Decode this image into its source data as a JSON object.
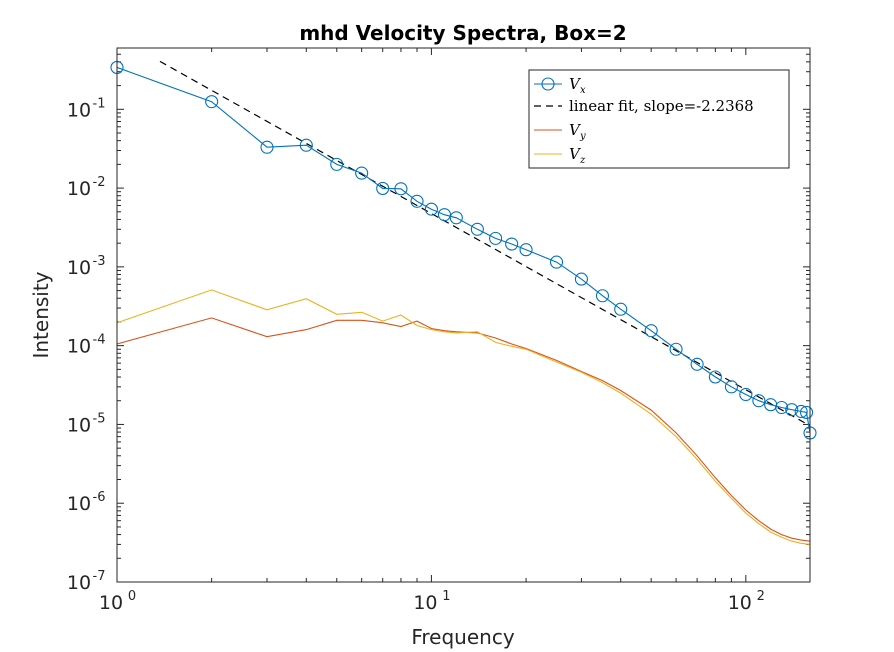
{
  "chart_data": {
    "type": "line",
    "title": "mhd Velocity Spectra, Box=2",
    "xlabel": "Frequency",
    "ylabel": "Intensity",
    "xscale": "log",
    "yscale": "log",
    "xlim": [
      1,
      160
    ],
    "ylim": [
      1e-07,
      0.6
    ],
    "xticks": [
      {
        "base": "10",
        "exp": "0",
        "value": 1
      },
      {
        "base": "10",
        "exp": "1",
        "value": 10
      },
      {
        "base": "10",
        "exp": "2",
        "value": 100
      }
    ],
    "yticks": [
      {
        "base": "10",
        "exp": "-7",
        "value": 1e-07
      },
      {
        "base": "10",
        "exp": "-6",
        "value": 1e-06
      },
      {
        "base": "10",
        "exp": "-5",
        "value": 1e-05
      },
      {
        "base": "10",
        "exp": "-4",
        "value": 0.0001
      },
      {
        "base": "10",
        "exp": "-3",
        "value": 0.001
      },
      {
        "base": "10",
        "exp": "-2",
        "value": 0.01
      },
      {
        "base": "10",
        "exp": "-1",
        "value": 0.1
      }
    ],
    "grid": false,
    "legend_position": "top-right",
    "series": [
      {
        "name": "V_x",
        "name_main": "V",
        "name_sub": "x",
        "color": "#0072BD",
        "style": "line-circle",
        "x": [
          1,
          2,
          3,
          4,
          5,
          6,
          7,
          8,
          9,
          10,
          11,
          12,
          14,
          16,
          18,
          20,
          25,
          30,
          35,
          40,
          50,
          60,
          70,
          80,
          90,
          100,
          110,
          120,
          130,
          140,
          150,
          156,
          160
        ],
        "y": [
          0.34,
          0.125,
          0.033,
          0.035,
          0.02,
          0.0155,
          0.0099,
          0.0098,
          0.0068,
          0.0054,
          0.0046,
          0.0042,
          0.003,
          0.0023,
          0.00195,
          0.00165,
          0.00115,
          0.0007,
          0.00043,
          0.00029,
          0.000155,
          9e-05,
          5.8e-05,
          4e-05,
          3e-05,
          2.4e-05,
          2e-05,
          1.78e-05,
          1.64e-05,
          1.54e-05,
          1.46e-05,
          1.42e-05,
          7.8e-06
        ]
      },
      {
        "name": "linear fit, slope=-2.2368",
        "color": "#000000",
        "style": "dashed",
        "slope": -2.2368,
        "intercept_at_x1": 0.82,
        "x_range": [
          1.37,
          160
        ]
      },
      {
        "name": "V_y",
        "name_main": "V",
        "name_sub": "y",
        "color": "#D95319",
        "style": "line",
        "x": [
          1,
          2,
          3,
          4,
          5,
          6,
          7,
          8,
          9,
          10,
          11,
          12,
          14,
          16,
          18,
          20,
          25,
          30,
          35,
          40,
          50,
          60,
          70,
          80,
          90,
          100,
          110,
          120,
          130,
          140,
          150,
          160
        ],
        "y": [
          0.000105,
          0.000225,
          0.00013,
          0.00016,
          0.00021,
          0.00021,
          0.000195,
          0.000175,
          0.000205,
          0.000165,
          0.000155,
          0.00015,
          0.000145,
          0.000125,
          0.000105,
          9.2e-05,
          6.5e-05,
          4.7e-05,
          3.6e-05,
          2.7e-05,
          1.52e-05,
          7.8e-06,
          4e-06,
          2.1e-06,
          1.25e-06,
          8.2e-07,
          6e-07,
          4.7e-07,
          4e-07,
          3.6e-07,
          3.4e-07,
          3.3e-07
        ]
      },
      {
        "name": "V_z",
        "name_main": "V",
        "name_sub": "z",
        "color": "#EDB120",
        "style": "line",
        "x": [
          1,
          2,
          3,
          4,
          5,
          6,
          7,
          8,
          9,
          10,
          11,
          12,
          14,
          16,
          18,
          20,
          25,
          30,
          35,
          40,
          50,
          60,
          70,
          80,
          90,
          100,
          110,
          120,
          130,
          140,
          150,
          160
        ],
        "y": [
          0.000195,
          0.00051,
          0.000285,
          0.000395,
          0.00025,
          0.000265,
          0.000205,
          0.000245,
          0.00018,
          0.00016,
          0.00015,
          0.000145,
          0.00015,
          0.00011,
          9.8e-05,
          9e-05,
          6.2e-05,
          4.6e-05,
          3.4e-05,
          2.5e-05,
          1.35e-05,
          7e-06,
          3.6e-06,
          1.9e-06,
          1.15e-06,
          7.5e-07,
          5.5e-07,
          4.3e-07,
          3.7e-07,
          3.3e-07,
          3.1e-07,
          3e-07
        ]
      }
    ]
  }
}
